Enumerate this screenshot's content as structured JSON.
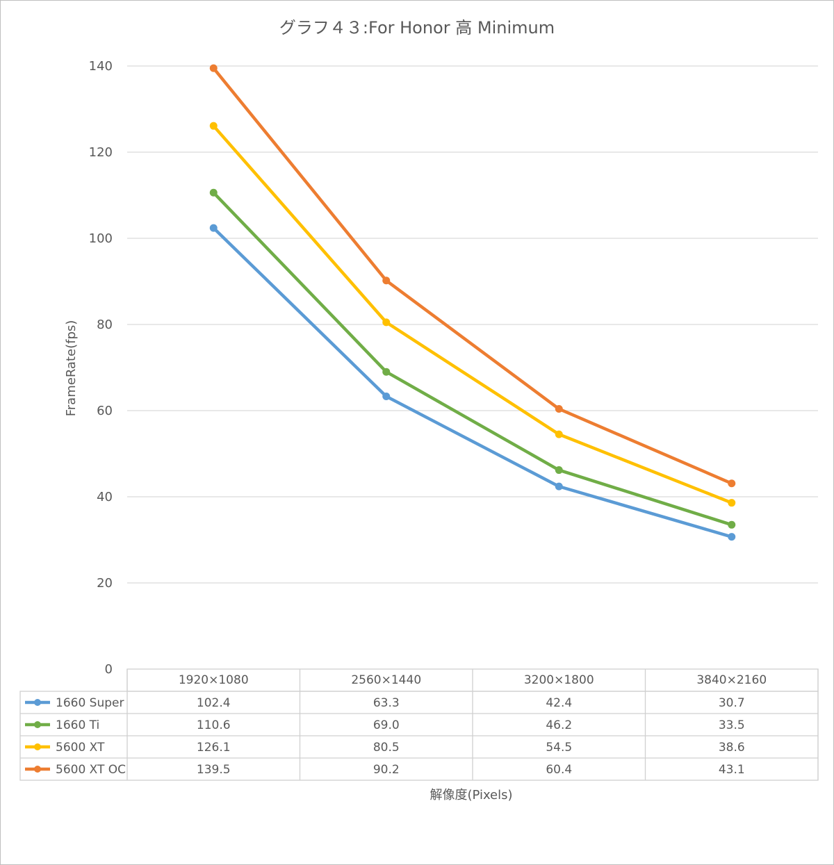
{
  "chart_data": {
    "type": "line",
    "title": "グラフ４３:For Honor 高 Minimum",
    "xlabel": "解像度(Pixels)",
    "ylabel": "FrameRate(fps)",
    "ylim": [
      0,
      140
    ],
    "yticks": [
      0,
      20,
      40,
      60,
      80,
      100,
      120,
      140
    ],
    "grid": true,
    "legend": "data-table",
    "categories": [
      "1920×1080",
      "2560×1440",
      "3200×1800",
      "3840×2160"
    ],
    "series": [
      {
        "name": "1660 Super",
        "color": "#5b9bd5",
        "values": [
          102.4,
          63.3,
          42.4,
          30.7
        ],
        "labels": [
          "102.4",
          "63.3",
          "42.4",
          "30.7"
        ]
      },
      {
        "name": "1660 Ti",
        "color": "#70ad47",
        "values": [
          110.6,
          69.0,
          46.2,
          33.5
        ],
        "labels": [
          "110.6",
          "69.0",
          "46.2",
          "33.5"
        ]
      },
      {
        "name": "5600 XT",
        "color": "#ffc000",
        "values": [
          126.1,
          80.5,
          54.5,
          38.6
        ],
        "labels": [
          "126.1",
          "80.5",
          "54.5",
          "38.6"
        ]
      },
      {
        "name": "5600 XT OC",
        "color": "#ed7d31",
        "values": [
          139.5,
          90.2,
          60.4,
          43.1
        ],
        "labels": [
          "139.5",
          "90.2",
          "60.4",
          "43.1"
        ]
      }
    ]
  }
}
